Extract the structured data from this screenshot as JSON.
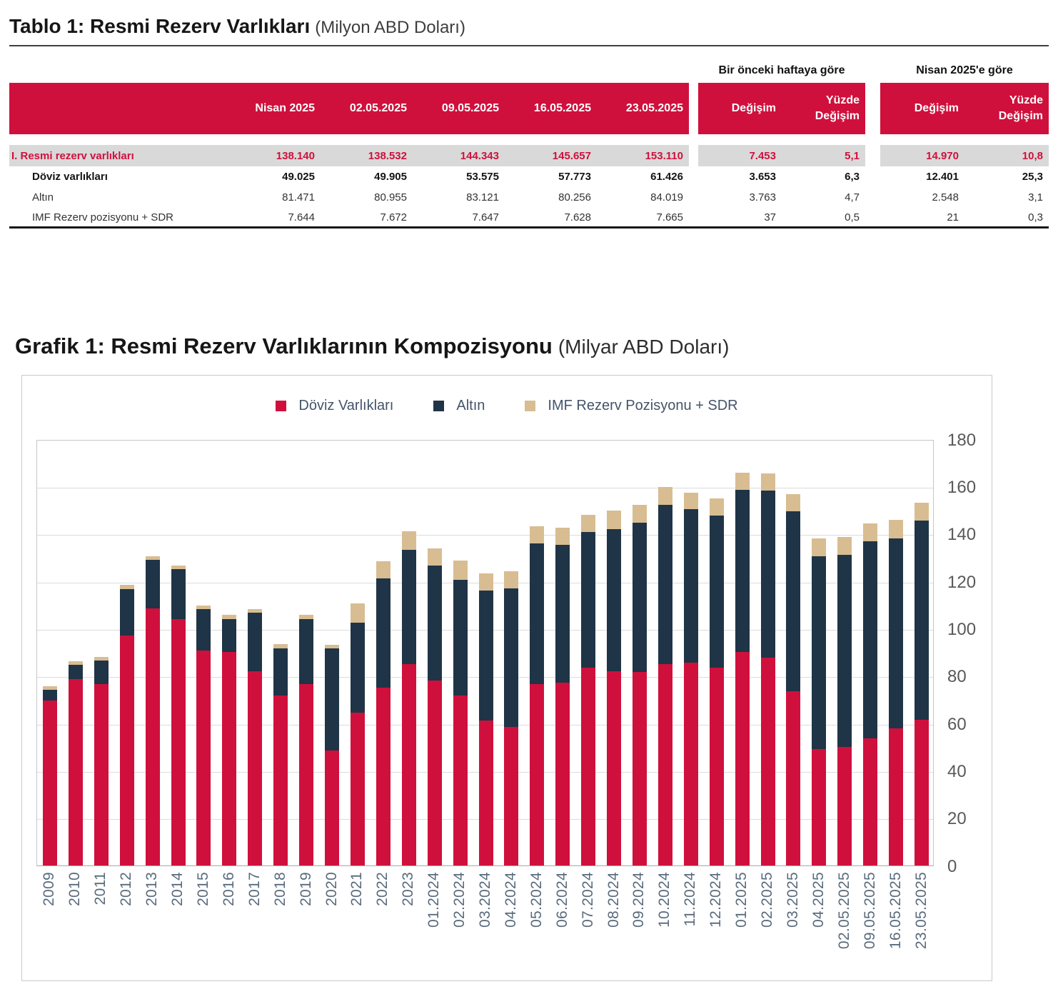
{
  "table": {
    "title": "Tablo 1: Resmi Rezerv Varlıkları",
    "title_suffix": "(Milyon ABD Doları)",
    "group_headers": {
      "weekly": "Bir önceki haftaya göre",
      "monthly": "Nisan 2025'e göre"
    },
    "date_columns": [
      "Nisan 2025",
      "02.05.2025",
      "09.05.2025",
      "16.05.2025",
      "23.05.2025"
    ],
    "change_columns": [
      "Değişim",
      "Yüzde Değişim"
    ],
    "rows": [
      {
        "label": "I. Resmi rezerv varlıkları",
        "style": "total",
        "values": [
          "138.140",
          "138.532",
          "144.343",
          "145.657",
          "153.110"
        ],
        "weekly": [
          "7.453",
          "5,1"
        ],
        "monthly": [
          "14.970",
          "10,8"
        ]
      },
      {
        "label": "Döviz varlıkları",
        "style": "bold",
        "values": [
          "49.025",
          "49.905",
          "53.575",
          "57.773",
          "61.426"
        ],
        "weekly": [
          "3.653",
          "6,3"
        ],
        "monthly": [
          "12.401",
          "25,3"
        ]
      },
      {
        "label": "Altın",
        "style": "normal",
        "values": [
          "81.471",
          "80.955",
          "83.121",
          "80.256",
          "84.019"
        ],
        "weekly": [
          "3.763",
          "4,7"
        ],
        "monthly": [
          "2.548",
          "3,1"
        ]
      },
      {
        "label": "IMF Rezerv pozisyonu + SDR",
        "style": "normal",
        "values": [
          "7.644",
          "7.672",
          "7.647",
          "7.628",
          "7.665"
        ],
        "weekly": [
          "37",
          "0,5"
        ],
        "monthly": [
          "21",
          "0,3"
        ]
      }
    ]
  },
  "chart": {
    "title": "Grafik 1: Resmi Rezerv Varlıklarının Kompozisyonu",
    "title_suffix": "(Milyar ABD Doları)"
  },
  "chart_data": {
    "type": "bar",
    "subtype": "stacked",
    "title": "Grafik 1: Resmi Rezerv Varlıklarının Kompozisyonu (Milyar ABD Doları)",
    "categories": [
      "2009",
      "2010",
      "2011",
      "2012",
      "2013",
      "2014",
      "2015",
      "2016",
      "2017",
      "2018",
      "2019",
      "2020",
      "2021",
      "2022",
      "2023",
      "01.2024",
      "02.2024",
      "03.2024",
      "04.2024",
      "05.2024",
      "06.2024",
      "07.2024",
      "08.2024",
      "09.2024",
      "10.2024",
      "11.2024",
      "12.2024",
      "01.2025",
      "02.2025",
      "03.2025",
      "04.2025",
      "02.05.2025",
      "09.05.2025",
      "16.05.2025",
      "23.05.2025"
    ],
    "series": [
      {
        "name": "Döviz Varlıkları",
        "color": "#d0103c",
        "values": [
          69.5,
          78.5,
          76.5,
          97,
          108.5,
          104,
          90.5,
          90,
          82,
          71.5,
          76.5,
          48.5,
          64.5,
          75,
          85,
          78,
          71.5,
          61,
          58.5,
          76.5,
          77,
          83.5,
          82,
          81.5,
          85,
          85.5,
          83.5,
          90,
          87.5,
          73.5,
          49.0,
          49.9,
          53.6,
          57.8,
          61.4
        ]
      },
      {
        "name": "Altın",
        "color": "#1f3447",
        "values": [
          4.5,
          6,
          10,
          19.5,
          20.5,
          21,
          17.5,
          14,
          24.5,
          20,
          27.5,
          43,
          38,
          46,
          48,
          48.5,
          49,
          55,
          58.3,
          59.3,
          58.2,
          57.1,
          59.9,
          63,
          67.2,
          64.7,
          64.1,
          68.5,
          70.7,
          76,
          81.5,
          81.0,
          83.1,
          80.3,
          84.0
        ]
      },
      {
        "name": "IMF Rezerv Pozisyonu + SDR",
        "color": "#d8bd92",
        "values": [
          1.5,
          1.5,
          1.5,
          2,
          1.5,
          1.5,
          1.5,
          1.7,
          1.5,
          1.8,
          1.7,
          1.5,
          8,
          7.4,
          7.9,
          7.3,
          8,
          7.3,
          7.4,
          7.3,
          7.3,
          7.3,
          7.7,
          7.7,
          7.4,
          7.2,
          7.3,
          7.3,
          7.3,
          7.3,
          7.6,
          7.7,
          7.6,
          7.6,
          7.7
        ]
      }
    ],
    "xlabel": "",
    "ylabel": "",
    "ylim": [
      0,
      180
    ],
    "yticks": [
      0,
      20,
      40,
      60,
      80,
      100,
      120,
      140,
      160,
      180
    ],
    "grid": true,
    "legend_position": "top"
  },
  "colors": {
    "accent_red": "#d0103c",
    "navy": "#1f3447",
    "tan": "#d8bd92",
    "row_highlight": "#d9d9d9",
    "gridline": "#dcdcdc",
    "axis_text": "#595959",
    "xlabel_text": "#5a6b7c"
  }
}
